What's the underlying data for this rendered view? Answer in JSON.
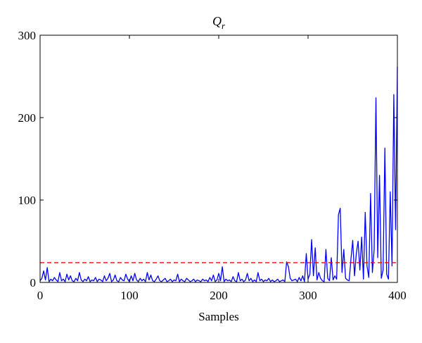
{
  "chart_data": {
    "type": "line",
    "title": "Q",
    "title_subscript": "r",
    "x_label": "Samples",
    "xlim": [
      0,
      400
    ],
    "xticks": [
      0,
      100,
      200,
      300,
      400
    ],
    "ylim": [
      0,
      300
    ],
    "yticks": [
      0,
      100,
      200,
      300
    ],
    "grid": false,
    "threshold": 24,
    "threshold_color": "#ff0000",
    "series": [
      {
        "color": "#0000ff",
        "x": [
          0,
          2,
          4,
          6,
          8,
          10,
          12,
          14,
          16,
          18,
          20,
          22,
          24,
          26,
          28,
          30,
          32,
          34,
          36,
          38,
          40,
          42,
          44,
          46,
          48,
          50,
          52,
          54,
          56,
          58,
          60,
          62,
          64,
          66,
          68,
          70,
          72,
          74,
          76,
          78,
          80,
          82,
          84,
          86,
          88,
          90,
          92,
          94,
          96,
          98,
          100,
          102,
          104,
          106,
          108,
          110,
          112,
          114,
          116,
          118,
          120,
          122,
          124,
          126,
          128,
          130,
          132,
          134,
          136,
          138,
          140,
          142,
          144,
          146,
          148,
          150,
          152,
          154,
          156,
          158,
          160,
          162,
          164,
          166,
          168,
          170,
          172,
          174,
          176,
          178,
          180,
          182,
          184,
          186,
          188,
          190,
          192,
          194,
          196,
          198,
          200,
          202,
          204,
          206,
          208,
          210,
          212,
          214,
          216,
          218,
          220,
          222,
          224,
          226,
          228,
          230,
          232,
          234,
          236,
          238,
          240,
          242,
          244,
          246,
          248,
          250,
          252,
          254,
          256,
          258,
          260,
          262,
          264,
          266,
          268,
          270,
          272,
          274,
          276,
          278,
          280,
          282,
          284,
          286,
          288,
          290,
          292,
          294,
          296,
          298,
          300,
          302,
          304,
          306,
          308,
          310,
          312,
          314,
          316,
          318,
          320,
          322,
          324,
          326,
          328,
          330,
          332,
          334,
          336,
          338,
          340,
          342,
          344,
          346,
          348,
          350,
          352,
          354,
          356,
          358,
          360,
          362,
          364,
          366,
          368,
          370,
          372,
          374,
          376,
          378,
          380,
          382,
          384,
          386,
          388,
          390,
          392,
          394,
          396,
          398,
          400
        ],
        "values": [
          2,
          5,
          14,
          3,
          18,
          1,
          4,
          2,
          6,
          3,
          1,
          12,
          2,
          4,
          1,
          10,
          3,
          8,
          2,
          1,
          5,
          2,
          12,
          3,
          1,
          4,
          2,
          7,
          1,
          3,
          2,
          6,
          1,
          4,
          3,
          1,
          8,
          2,
          5,
          11,
          1,
          3,
          9,
          2,
          1,
          6,
          3,
          2,
          10,
          4,
          1,
          8,
          2,
          11,
          3,
          1,
          5,
          2,
          4,
          1,
          12,
          3,
          9,
          2,
          1,
          4,
          8,
          2,
          1,
          3,
          5,
          1,
          2,
          4,
          1,
          3,
          2,
          10,
          1,
          4,
          2,
          1,
          5,
          3,
          1,
          2,
          4,
          1,
          3,
          2,
          1,
          4,
          2,
          3,
          1,
          6,
          2,
          9,
          1,
          3,
          11,
          2,
          19,
          1,
          4,
          2,
          3,
          1,
          7,
          2,
          1,
          12,
          2,
          4,
          1,
          3,
          11,
          2,
          5,
          1,
          3,
          1,
          12,
          2,
          4,
          1,
          3,
          2,
          5,
          1,
          3,
          1,
          2,
          4,
          1,
          2,
          3,
          1,
          25,
          19,
          5,
          2,
          3,
          4,
          1,
          6,
          2,
          8,
          1,
          35,
          4,
          10,
          52,
          8,
          42,
          3,
          12,
          5,
          2,
          1,
          40,
          5,
          2,
          30,
          3,
          8,
          4,
          82,
          90,
          12,
          40,
          5,
          3,
          2,
          28,
          51,
          8,
          35,
          50,
          15,
          55,
          4,
          85,
          20,
          6,
          108,
          12,
          40,
          224,
          30,
          130,
          5,
          15,
          163,
          10,
          4,
          110,
          20,
          228,
          64,
          262
        ]
      }
    ]
  }
}
